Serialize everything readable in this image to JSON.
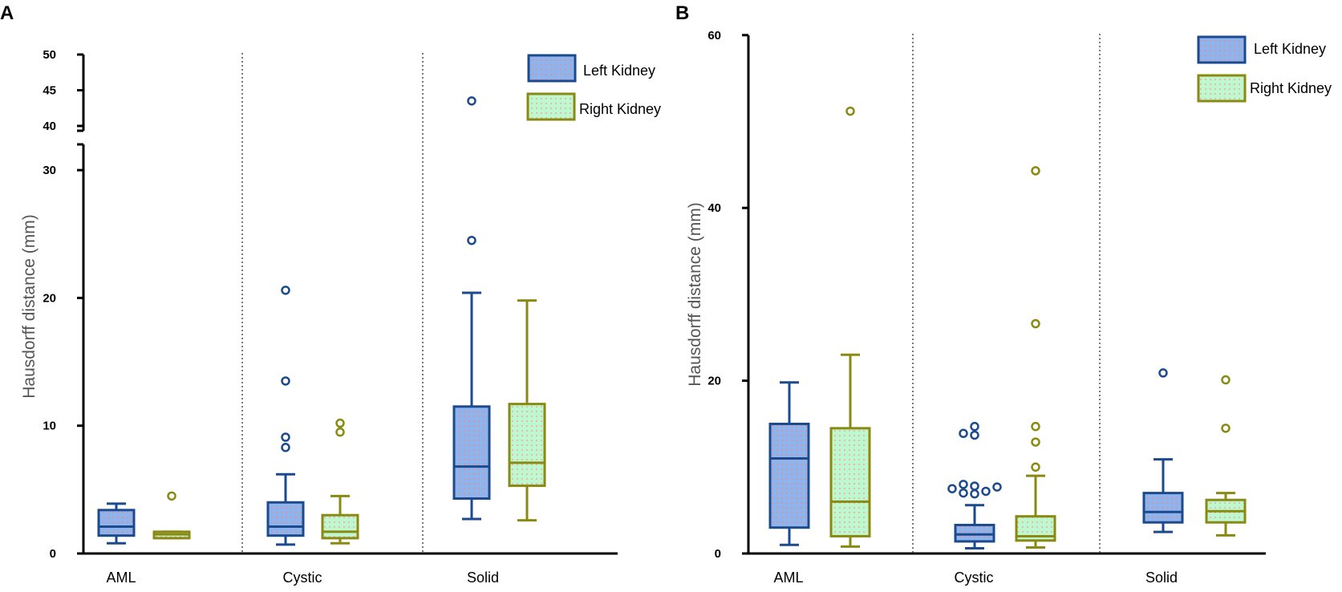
{
  "colors": {
    "left_stroke": "#1b4a8e",
    "left_fill": "#8fb3ea",
    "left_dot": "#e48c8c",
    "right_stroke": "#8a8a12",
    "right_fill": "#bff7cf",
    "right_dot": "#ec9a9a"
  },
  "chart_data": [
    {
      "type": "box",
      "panel_label": "A",
      "ylabel": "Hausdorff distance (mm)",
      "categories": [
        "AML",
        "Cystic",
        "Solid"
      ],
      "ylim": [
        0,
        50
      ],
      "axis_break": [
        30,
        40
      ],
      "lower_ticks": [
        0,
        10,
        20,
        30
      ],
      "upper_ticks": [
        40,
        45,
        50
      ],
      "legend": [
        "Left Kidney",
        "Right Kidney"
      ],
      "legend_position": "top-right",
      "series": [
        {
          "name": "Left Kidney",
          "boxes": [
            {
              "category": "AML",
              "whisker_low": 0.8,
              "q1": 1.4,
              "median": 2.1,
              "q3": 3.4,
              "whisker_high": 3.9,
              "outliers": []
            },
            {
              "category": "Cystic",
              "whisker_low": 0.7,
              "q1": 1.4,
              "median": 2.1,
              "q3": 4.0,
              "whisker_high": 6.2,
              "outliers": [
                8.3,
                9.1,
                13.5,
                20.6
              ]
            },
            {
              "category": "Solid",
              "whisker_low": 2.7,
              "q1": 4.3,
              "median": 6.8,
              "q3": 11.5,
              "whisker_high": 20.4,
              "outliers": [
                24.5,
                43.5
              ]
            }
          ]
        },
        {
          "name": "Right Kidney",
          "boxes": [
            {
              "category": "AML",
              "whisker_low": 1.2,
              "q1": 1.2,
              "median": 1.5,
              "q3": 1.7,
              "whisker_high": 1.7,
              "outliers": [
                4.5
              ]
            },
            {
              "category": "Cystic",
              "whisker_low": 0.8,
              "q1": 1.2,
              "median": 1.7,
              "q3": 3.0,
              "whisker_high": 4.5,
              "outliers": [
                9.5,
                10.2
              ]
            },
            {
              "category": "Solid",
              "whisker_low": 2.6,
              "q1": 5.3,
              "median": 7.1,
              "q3": 11.7,
              "whisker_high": 19.8,
              "outliers": []
            }
          ]
        }
      ]
    },
    {
      "type": "box",
      "panel_label": "B",
      "ylabel": "Hausdorff distance (mm)",
      "categories": [
        "AML",
        "Cystic",
        "Solid"
      ],
      "ylim": [
        0,
        60
      ],
      "ticks": [
        0,
        20,
        40,
        60
      ],
      "legend": [
        "Left Kidney",
        "Right Kidney"
      ],
      "legend_position": "top-right",
      "series": [
        {
          "name": "Left Kidney",
          "boxes": [
            {
              "category": "AML",
              "whisker_low": 1.0,
              "q1": 3.0,
              "median": 11.0,
              "q3": 15.0,
              "whisker_high": 19.8,
              "outliers": []
            },
            {
              "category": "Cystic",
              "whisker_low": 0.6,
              "q1": 1.4,
              "median": 2.2,
              "q3": 3.3,
              "whisker_high": 5.6,
              "outliers": [
                6.9,
                7.0,
                7.2,
                7.5,
                7.7,
                7.8,
                8.0,
                13.7,
                13.9,
                14.7
              ]
            },
            {
              "category": "Solid",
              "whisker_low": 2.5,
              "q1": 3.6,
              "median": 4.8,
              "q3": 7.0,
              "whisker_high": 10.9,
              "outliers": [
                20.9
              ]
            }
          ]
        },
        {
          "name": "Right Kidney",
          "boxes": [
            {
              "category": "AML",
              "whisker_low": 0.8,
              "q1": 2.0,
              "median": 6.0,
              "q3": 14.5,
              "whisker_high": 23.0,
              "outliers": [
                51.2
              ]
            },
            {
              "category": "Cystic",
              "whisker_low": 0.7,
              "q1": 1.5,
              "median": 2.0,
              "q3": 4.3,
              "whisker_high": 9.0,
              "outliers": [
                10.0,
                12.9,
                14.7,
                26.6,
                44.3
              ]
            },
            {
              "category": "Solid",
              "whisker_low": 2.1,
              "q1": 3.6,
              "median": 4.9,
              "q3": 6.2,
              "whisker_high": 7.0,
              "outliers": [
                14.5,
                20.1
              ]
            }
          ]
        }
      ]
    }
  ]
}
